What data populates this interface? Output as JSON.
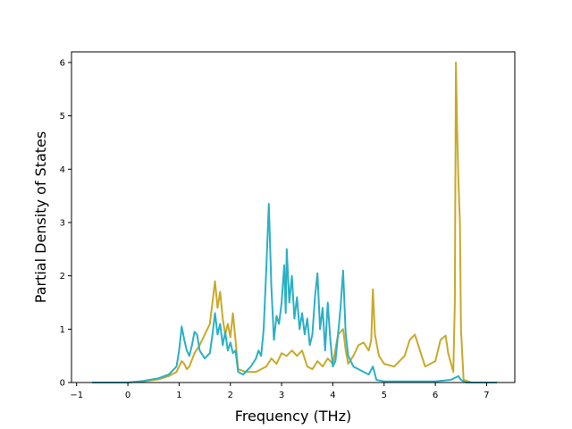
{
  "chart_data": {
    "type": "line",
    "title": "",
    "xlabel": "Frequency (THz)",
    "ylabel": "Partial Density of States",
    "xlim": [
      -1.1,
      7.55
    ],
    "ylim": [
      0,
      6.2
    ],
    "xticks": [
      -1,
      0,
      1,
      2,
      3,
      4,
      5,
      6,
      7
    ],
    "yticks": [
      0,
      1,
      2,
      3,
      4,
      5,
      6
    ],
    "grid": false,
    "legend": "none",
    "series": [
      {
        "color": "#c9a92b",
        "points": [
          [
            -0.7,
            0
          ],
          [
            0.0,
            0.0
          ],
          [
            0.3,
            0.02
          ],
          [
            0.6,
            0.06
          ],
          [
            0.8,
            0.12
          ],
          [
            0.95,
            0.2
          ],
          [
            1.05,
            0.4
          ],
          [
            1.1,
            0.35
          ],
          [
            1.15,
            0.25
          ],
          [
            1.2,
            0.3
          ],
          [
            1.3,
            0.55
          ],
          [
            1.4,
            0.7
          ],
          [
            1.5,
            0.9
          ],
          [
            1.55,
            1.0
          ],
          [
            1.6,
            1.1
          ],
          [
            1.65,
            1.5
          ],
          [
            1.7,
            1.9
          ],
          [
            1.75,
            1.4
          ],
          [
            1.8,
            1.7
          ],
          [
            1.85,
            1.2
          ],
          [
            1.9,
            0.9
          ],
          [
            1.95,
            1.1
          ],
          [
            2.0,
            0.85
          ],
          [
            2.05,
            1.3
          ],
          [
            2.1,
            0.8
          ],
          [
            2.15,
            0.25
          ],
          [
            2.3,
            0.2
          ],
          [
            2.5,
            0.2
          ],
          [
            2.7,
            0.3
          ],
          [
            2.8,
            0.45
          ],
          [
            2.9,
            0.35
          ],
          [
            3.0,
            0.55
          ],
          [
            3.1,
            0.5
          ],
          [
            3.2,
            0.6
          ],
          [
            3.3,
            0.5
          ],
          [
            3.4,
            0.6
          ],
          [
            3.5,
            0.3
          ],
          [
            3.6,
            0.25
          ],
          [
            3.7,
            0.4
          ],
          [
            3.8,
            0.3
          ],
          [
            3.9,
            0.45
          ],
          [
            4.0,
            0.35
          ],
          [
            4.1,
            0.9
          ],
          [
            4.2,
            1.0
          ],
          [
            4.25,
            0.6
          ],
          [
            4.3,
            0.35
          ],
          [
            4.4,
            0.5
          ],
          [
            4.5,
            0.7
          ],
          [
            4.6,
            0.75
          ],
          [
            4.7,
            0.6
          ],
          [
            4.75,
            0.8
          ],
          [
            4.78,
            1.75
          ],
          [
            4.82,
            0.9
          ],
          [
            4.9,
            0.5
          ],
          [
            5.0,
            0.35
          ],
          [
            5.2,
            0.3
          ],
          [
            5.4,
            0.5
          ],
          [
            5.5,
            0.8
          ],
          [
            5.6,
            0.9
          ],
          [
            5.7,
            0.6
          ],
          [
            5.8,
            0.3
          ],
          [
            6.0,
            0.4
          ],
          [
            6.1,
            0.8
          ],
          [
            6.2,
            0.88
          ],
          [
            6.25,
            0.55
          ],
          [
            6.35,
            0.2
          ],
          [
            6.38,
            1.5
          ],
          [
            6.4,
            6.0
          ],
          [
            6.43,
            4.5
          ],
          [
            6.45,
            3.8
          ],
          [
            6.48,
            3.0
          ],
          [
            6.5,
            1.0
          ],
          [
            6.55,
            0.05
          ],
          [
            6.7,
            0
          ],
          [
            7.2,
            0
          ]
        ]
      },
      {
        "color": "#2bb0c5",
        "points": [
          [
            -0.7,
            0
          ],
          [
            0.0,
            0.0
          ],
          [
            0.3,
            0.03
          ],
          [
            0.6,
            0.08
          ],
          [
            0.8,
            0.15
          ],
          [
            0.95,
            0.3
          ],
          [
            1.0,
            0.6
          ],
          [
            1.05,
            1.05
          ],
          [
            1.1,
            0.8
          ],
          [
            1.15,
            0.6
          ],
          [
            1.2,
            0.5
          ],
          [
            1.25,
            0.7
          ],
          [
            1.3,
            0.95
          ],
          [
            1.35,
            0.9
          ],
          [
            1.4,
            0.6
          ],
          [
            1.5,
            0.45
          ],
          [
            1.6,
            0.55
          ],
          [
            1.65,
            0.9
          ],
          [
            1.7,
            1.3
          ],
          [
            1.75,
            0.9
          ],
          [
            1.8,
            1.1
          ],
          [
            1.85,
            0.7
          ],
          [
            1.9,
            0.95
          ],
          [
            1.95,
            0.6
          ],
          [
            2.0,
            0.75
          ],
          [
            2.05,
            0.55
          ],
          [
            2.1,
            0.6
          ],
          [
            2.15,
            0.2
          ],
          [
            2.25,
            0.15
          ],
          [
            2.4,
            0.3
          ],
          [
            2.5,
            0.45
          ],
          [
            2.55,
            0.6
          ],
          [
            2.6,
            0.5
          ],
          [
            2.65,
            1.0
          ],
          [
            2.7,
            2.1
          ],
          [
            2.75,
            3.35
          ],
          [
            2.8,
            1.8
          ],
          [
            2.85,
            0.8
          ],
          [
            2.9,
            1.25
          ],
          [
            2.95,
            1.1
          ],
          [
            3.0,
            1.5
          ],
          [
            3.05,
            2.2
          ],
          [
            3.08,
            1.3
          ],
          [
            3.1,
            2.5
          ],
          [
            3.15,
            1.5
          ],
          [
            3.2,
            2.0
          ],
          [
            3.25,
            1.2
          ],
          [
            3.3,
            1.6
          ],
          [
            3.35,
            1.0
          ],
          [
            3.4,
            1.3
          ],
          [
            3.45,
            0.9
          ],
          [
            3.5,
            1.2
          ],
          [
            3.55,
            0.7
          ],
          [
            3.6,
            0.9
          ],
          [
            3.65,
            1.6
          ],
          [
            3.7,
            2.05
          ],
          [
            3.75,
            1.0
          ],
          [
            3.8,
            1.4
          ],
          [
            3.85,
            0.6
          ],
          [
            3.9,
            1.5
          ],
          [
            3.95,
            0.8
          ],
          [
            4.0,
            0.3
          ],
          [
            4.05,
            0.4
          ],
          [
            4.1,
            0.9
          ],
          [
            4.15,
            1.4
          ],
          [
            4.2,
            2.1
          ],
          [
            4.25,
            0.9
          ],
          [
            4.3,
            0.5
          ],
          [
            4.4,
            0.3
          ],
          [
            4.5,
            0.25
          ],
          [
            4.6,
            0.2
          ],
          [
            4.7,
            0.15
          ],
          [
            4.78,
            0.3
          ],
          [
            4.85,
            0.05
          ],
          [
            5.0,
            0.02
          ],
          [
            5.5,
            0.02
          ],
          [
            6.0,
            0.02
          ],
          [
            6.3,
            0.05
          ],
          [
            6.45,
            0.12
          ],
          [
            6.5,
            0.05
          ],
          [
            6.6,
            0
          ],
          [
            7.2,
            0
          ]
        ]
      }
    ]
  }
}
